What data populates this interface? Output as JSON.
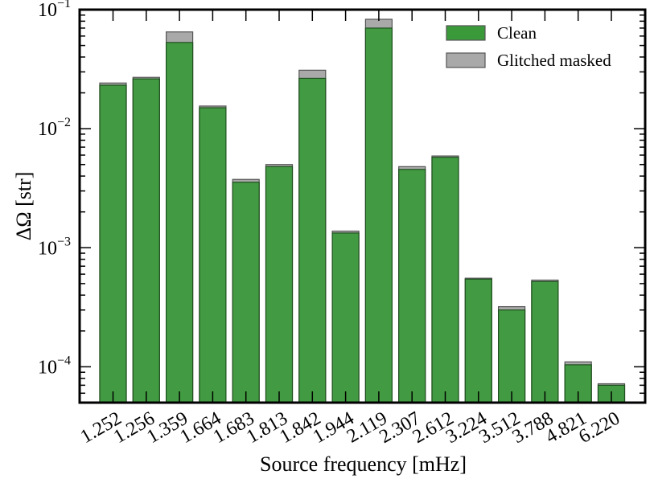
{
  "chart_data": {
    "type": "bar",
    "categories": [
      "1.252",
      "1.256",
      "1.359",
      "1.664",
      "1.683",
      "1.813",
      "1.842",
      "1.944",
      "2.119",
      "2.307",
      "2.612",
      "3.224",
      "3.512",
      "3.788",
      "4.821",
      "6.220"
    ],
    "series": [
      {
        "name": "Glitched masked",
        "color": "#a9a9a9",
        "values": [
          0.0242,
          0.027,
          0.065,
          0.0155,
          0.00375,
          0.005,
          0.031,
          0.00138,
          0.083,
          0.0048,
          0.0059,
          0.000555,
          0.00032,
          0.000535,
          0.00011,
          7.2e-05
        ]
      },
      {
        "name": "Clean",
        "color": "#3a9a3a",
        "values": [
          0.0232,
          0.0262,
          0.053,
          0.015,
          0.00355,
          0.0048,
          0.0265,
          0.00133,
          0.07,
          0.00455,
          0.00575,
          0.000545,
          0.0003,
          0.00052,
          0.000104,
          7e-05
        ]
      }
    ],
    "xlabel": "Source frequency [mHz]",
    "ylabel": "ΔΩ [str]",
    "yscale": "log",
    "ylim": [
      5e-05,
      0.1
    ],
    "yticks": [
      {
        "value": 0.0001,
        "base": "10",
        "exp": "−4"
      },
      {
        "value": 0.001,
        "base": "10",
        "exp": "−3"
      },
      {
        "value": 0.01,
        "base": "10",
        "exp": "−2"
      },
      {
        "value": 0.1,
        "base": "10",
        "exp": "−1"
      }
    ],
    "legend": {
      "position": "top-right",
      "entries": [
        "Clean",
        "Glitched masked"
      ]
    },
    "grid": false
  }
}
